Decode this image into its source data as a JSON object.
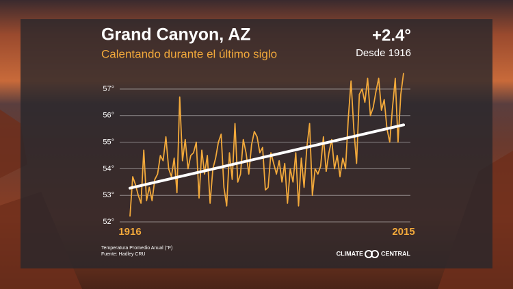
{
  "chart_data": {
    "type": "line",
    "title": "Grand Canyon, AZ",
    "subtitle": "Calentando durante el último siglo",
    "headline": "+2.4°",
    "headline_note": "Desde 1916",
    "y_label": "Temperatura Promedio Anual (°F)",
    "source": "Fuente: Hadley CRU",
    "logo": [
      "CLIMATE",
      "CENTRAL"
    ],
    "color": "#f2a93b",
    "trend_color": "#ffffff",
    "grid": true,
    "x": [
      1916,
      1917,
      1918,
      1919,
      1920,
      1921,
      1922,
      1923,
      1924,
      1925,
      1926,
      1927,
      1928,
      1929,
      1930,
      1931,
      1932,
      1933,
      1934,
      1935,
      1936,
      1937,
      1938,
      1939,
      1940,
      1941,
      1942,
      1943,
      1944,
      1945,
      1946,
      1947,
      1948,
      1949,
      1950,
      1951,
      1952,
      1953,
      1954,
      1955,
      1956,
      1957,
      1958,
      1959,
      1960,
      1961,
      1962,
      1963,
      1964,
      1965,
      1966,
      1967,
      1968,
      1969,
      1970,
      1971,
      1972,
      1973,
      1974,
      1975,
      1976,
      1977,
      1978,
      1979,
      1980,
      1981,
      1982,
      1983,
      1984,
      1985,
      1986,
      1987,
      1988,
      1989,
      1990,
      1991,
      1992,
      1993,
      1994,
      1995,
      1996,
      1997,
      1998,
      1999,
      2000,
      2001,
      2002,
      2003,
      2004,
      2005,
      2006,
      2007,
      2008,
      2009,
      2010,
      2011,
      2012,
      2013,
      2014,
      2015
    ],
    "values": [
      52.2,
      53.7,
      53.4,
      53.0,
      52.7,
      54.7,
      52.8,
      53.3,
      52.8,
      53.6,
      53.8,
      54.5,
      54.3,
      55.2,
      54.0,
      53.7,
      54.4,
      53.1,
      56.7,
      54.3,
      55.1,
      54.0,
      54.5,
      54.6,
      55.0,
      52.9,
      54.7,
      53.8,
      54.5,
      52.7,
      54.0,
      54.4,
      55.0,
      55.3,
      53.3,
      52.6,
      54.6,
      53.6,
      55.7,
      53.5,
      53.8,
      55.1,
      54.6,
      53.8,
      54.9,
      55.4,
      55.2,
      54.6,
      54.8,
      53.2,
      53.3,
      54.6,
      54.2,
      53.8,
      54.3,
      53.5,
      54.2,
      52.7,
      54.0,
      53.5,
      54.6,
      52.6,
      54.4,
      53.3,
      54.8,
      55.7,
      53.0,
      54.0,
      53.8,
      54.1,
      55.2,
      53.9,
      54.6,
      55.1,
      54.0,
      54.5,
      53.7,
      54.4,
      54.0,
      55.9,
      57.3,
      55.5,
      54.2,
      56.8,
      57.0,
      56.5,
      57.4,
      56.0,
      56.3,
      56.9,
      57.4,
      56.2,
      56.6,
      55.5,
      55.0,
      56.3,
      57.4,
      55.0,
      56.8,
      57.6
    ],
    "trend": {
      "x": [
        1916,
        2015
      ],
      "values": [
        53.27,
        55.65
      ]
    },
    "xlim": [
      1916,
      2015
    ],
    "xticks": [
      1916,
      2015
    ],
    "ylim": [
      51.5,
      57.7
    ],
    "yticks": [
      {
        "value": 52,
        "label": "52°"
      },
      {
        "value": 53,
        "label": "53°"
      },
      {
        "value": 54,
        "label": "54°"
      },
      {
        "value": 55,
        "label": "55°"
      },
      {
        "value": 56,
        "label": "56°"
      },
      {
        "value": 57,
        "label": "57°"
      }
    ]
  }
}
